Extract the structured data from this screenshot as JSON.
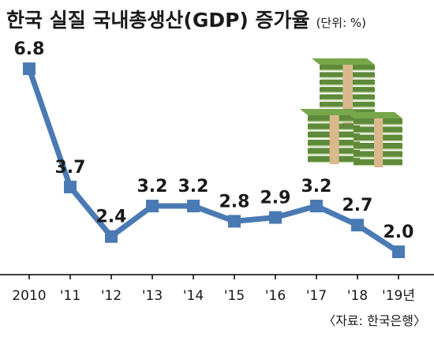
{
  "title": "한국 실질 국내총생산(GDP) 증가율",
  "unit": "(단위: %)",
  "source": "〈자료: 한국은행〉",
  "colors": {
    "line": "#4a7ab3",
    "marker": "#4a7ab3",
    "axis": "#000000",
    "money_green": "#5f8a3a",
    "money_band": "#d9b98c"
  },
  "decoration_icon": "money-stack-icon",
  "chart_data": {
    "type": "line",
    "title": "한국 실질 국내총생산(GDP) 증가율",
    "unit": "%",
    "categories": [
      "2010",
      "'11",
      "'12",
      "'13",
      "'14",
      "'15",
      "'16",
      "'17",
      "'18",
      "'19년"
    ],
    "values": [
      6.8,
      3.7,
      2.4,
      3.2,
      3.2,
      2.8,
      2.9,
      3.2,
      2.7,
      2.0
    ],
    "value_labels": [
      "6.8",
      "3.7",
      "2.4",
      "3.2",
      "3.2",
      "2.8",
      "2.9",
      "3.2",
      "2.7",
      "2.0"
    ],
    "ylim": [
      1.4,
      7.3
    ],
    "grid": false,
    "legend": "none"
  }
}
